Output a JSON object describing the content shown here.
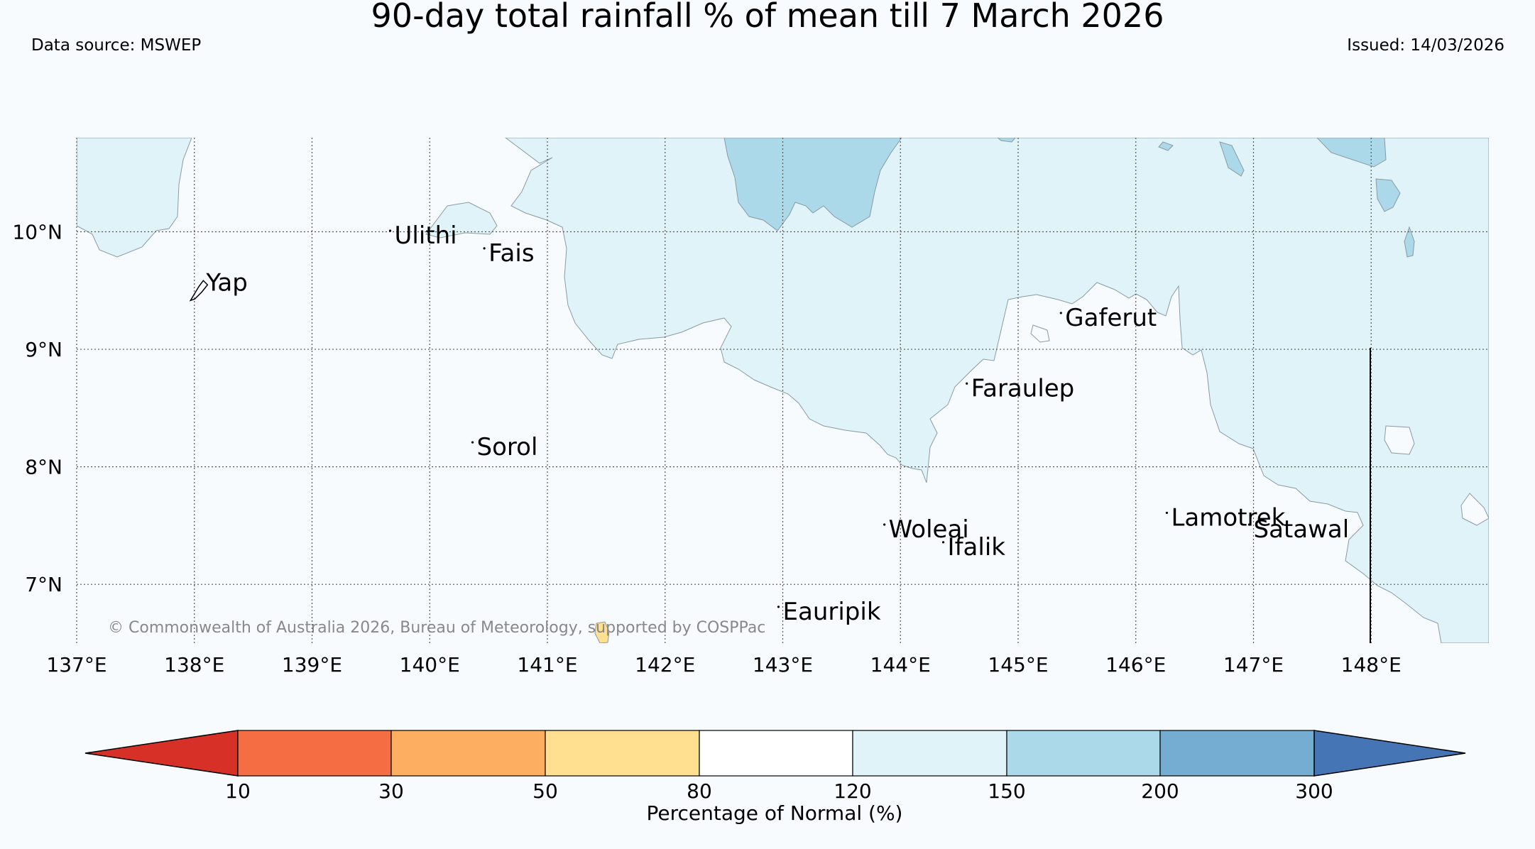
{
  "header": {
    "title": "90-day total rainfall % of mean till 7 March 2026",
    "source": "Data source: MSWEP",
    "issued": "Issued: 14/03/2026"
  },
  "map": {
    "lon_range": [
      137,
      149
    ],
    "lat_range": [
      6.5,
      10.8
    ],
    "lon_ticks": [
      "137°E",
      "138°E",
      "139°E",
      "140°E",
      "141°E",
      "142°E",
      "143°E",
      "144°E",
      "145°E",
      "146°E",
      "147°E",
      "148°E"
    ],
    "lat_ticks": [
      "10°N",
      "9°N",
      "8°N",
      "7°N"
    ],
    "places": [
      {
        "name": "Yap",
        "lon": 138.1,
        "lat": 9.5
      },
      {
        "name": "Ulithi",
        "lon": 139.7,
        "lat": 9.9
      },
      {
        "name": "Fais",
        "lon": 140.5,
        "lat": 9.75
      },
      {
        "name": "Sorol",
        "lon": 140.4,
        "lat": 8.1
      },
      {
        "name": "Gaferut",
        "lon": 145.4,
        "lat": 9.2
      },
      {
        "name": "Faraulep",
        "lon": 144.6,
        "lat": 8.6
      },
      {
        "name": "Woleai",
        "lon": 143.9,
        "lat": 7.4
      },
      {
        "name": "Ifalik",
        "lon": 144.4,
        "lat": 7.25
      },
      {
        "name": "Lamotrek",
        "lon": 146.3,
        "lat": 7.5
      },
      {
        "name": "Satawal",
        "lon": 147.0,
        "lat": 7.4
      },
      {
        "name": "Eauripik",
        "lon": 143.0,
        "lat": 6.7
      }
    ],
    "copyright": "© Commonwealth of Australia 2026, Bureau of Meteorology, supported by COSPPac"
  },
  "colorbar": {
    "label": "Percentage of Normal (%)",
    "ticks": [
      "10",
      "30",
      "50",
      "80",
      "120",
      "150",
      "200",
      "300"
    ],
    "colors": {
      "lt10": "#d73027",
      "c10_30": "#f46d43",
      "c30_50": "#fdae61",
      "c50_80": "#fee090",
      "c80_120": "#ffffff",
      "c120_150": "#e0f3f8",
      "c150_200": "#abd9e9",
      "c200_300": "#74add1",
      "gt300": "#4575b4"
    }
  }
}
